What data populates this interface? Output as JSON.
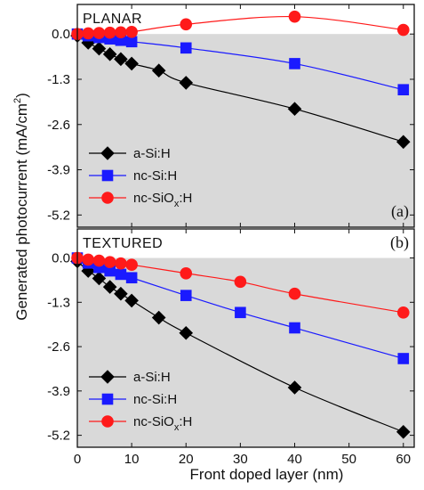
{
  "chart_data": {
    "type": "line",
    "ylabel_main": "Generated photocurrent (mA/cm",
    "ylabel_sup": "2",
    "ylabel_close": ")",
    "xlabel": "Front doped layer (nm)",
    "xlim": [
      0,
      62
    ],
    "xticks": [
      "0",
      "10",
      "20",
      "30",
      "40",
      "50",
      "60"
    ],
    "xtick_values": [
      0,
      10,
      20,
      30,
      40,
      50,
      60
    ],
    "yticks": [
      "0.0",
      "-1.3",
      "-2.6",
      "-3.9",
      "-5.2"
    ],
    "ytick_values": [
      0.0,
      -1.3,
      -2.6,
      -3.9,
      -5.2
    ],
    "ylim": [
      -5.55,
      0.85
    ],
    "shaded_region": "y below 0",
    "colors": {
      "a-Si:H": "#000000",
      "nc-Si:H": "#1a1aff",
      "nc-SiOx:H": "#ff1a1a",
      "shade": "#d9d9d9"
    },
    "legend": [
      {
        "base": "a-Si:H",
        "sub": "",
        "rest": "",
        "marker": "diamond",
        "color": "#000000"
      },
      {
        "base": "nc-Si:H",
        "sub": "",
        "rest": "",
        "marker": "square",
        "color": "#1a1aff"
      },
      {
        "base": "nc-SiO",
        "sub": "x",
        "rest": ":H",
        "marker": "circle",
        "color": "#ff1a1a"
      }
    ],
    "panels": [
      {
        "title": "PLANAR",
        "tag": "(a)",
        "series": [
          {
            "name": "a-Si:H",
            "marker": "diamond",
            "color": "#000000",
            "x": [
              0,
              2,
              4,
              6,
              8,
              10,
              15,
              20,
              40,
              60
            ],
            "y": [
              -0.05,
              -0.25,
              -0.42,
              -0.58,
              -0.72,
              -0.85,
              -1.05,
              -1.4,
              -2.15,
              -3.1
            ]
          },
          {
            "name": "nc-Si:H",
            "marker": "square",
            "color": "#1a1aff",
            "x": [
              0,
              2,
              4,
              6,
              8,
              10,
              20,
              40,
              60
            ],
            "y": [
              0.0,
              -0.05,
              -0.1,
              -0.14,
              -0.18,
              -0.22,
              -0.4,
              -0.85,
              -1.6
            ]
          },
          {
            "name": "nc-SiOx:H",
            "marker": "circle",
            "color": "#ff1a1a",
            "x": [
              0,
              2,
              4,
              6,
              8,
              10,
              20,
              40,
              60
            ],
            "y": [
              0.0,
              0.02,
              0.03,
              0.04,
              0.05,
              0.06,
              0.28,
              0.5,
              0.12
            ]
          }
        ]
      },
      {
        "title": "TEXTURED",
        "tag": "(b)",
        "series": [
          {
            "name": "a-Si:H",
            "marker": "diamond",
            "color": "#000000",
            "x": [
              0,
              2,
              4,
              6,
              8,
              10,
              15,
              20,
              40,
              60
            ],
            "y": [
              -0.1,
              -0.38,
              -0.6,
              -0.85,
              -1.05,
              -1.25,
              -1.75,
              -2.2,
              -3.8,
              -5.1
            ]
          },
          {
            "name": "nc-Si:H",
            "marker": "square",
            "color": "#1a1aff",
            "x": [
              0,
              2,
              4,
              6,
              8,
              10,
              20,
              30,
              40,
              60
            ],
            "y": [
              0.0,
              -0.15,
              -0.28,
              -0.38,
              -0.48,
              -0.58,
              -1.1,
              -1.6,
              -2.05,
              -2.95
            ]
          },
          {
            "name": "nc-SiOx:H",
            "marker": "circle",
            "color": "#ff1a1a",
            "x": [
              0,
              2,
              4,
              6,
              8,
              10,
              20,
              30,
              40,
              60
            ],
            "y": [
              0.0,
              -0.05,
              -0.08,
              -0.12,
              -0.16,
              -0.2,
              -0.45,
              -0.7,
              -1.05,
              -1.6
            ]
          }
        ]
      }
    ]
  }
}
